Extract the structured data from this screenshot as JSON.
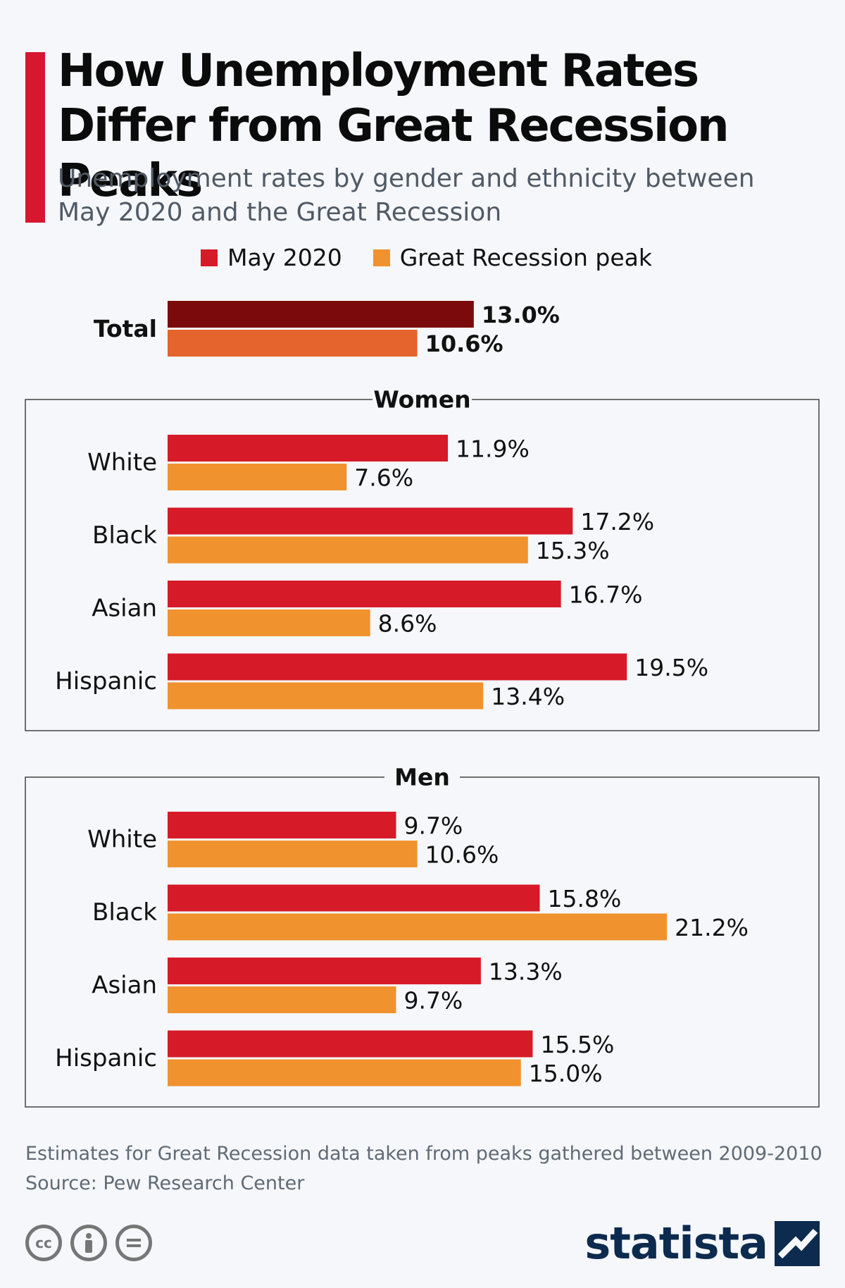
{
  "title": "How Unemployment Rates Differ from Great Recession Peaks",
  "subtitle": "Unemployment rates by gender and ethnicity between May 2020 and the Great Recession",
  "legend": {
    "may2020": "May 2020",
    "recession": "Great Recession peak"
  },
  "colors": {
    "accent": "#d7172f",
    "may2020": "#d71a28",
    "recession": "#f0922e",
    "total_may2020": "#7b0a0c",
    "total_recession": "#e5632c"
  },
  "note": "Estimates for Great Recession data taken from peaks gathered between 2009-2010",
  "source": "Source: Pew Research Center",
  "license_icons": [
    "cc-icon",
    "attribution-icon",
    "no-derivatives-icon"
  ],
  "brand": "statista",
  "chart_data": {
    "type": "bar",
    "orientation": "horizontal",
    "xlim": [
      0,
      25
    ],
    "series_names": [
      "May 2020",
      "Great Recession peak"
    ],
    "groups": [
      {
        "name": "",
        "categories": [
          "Total"
        ],
        "series": [
          {
            "name": "May 2020",
            "values": [
              13.0
            ],
            "labels": [
              "13.0%"
            ]
          },
          {
            "name": "Great Recession peak",
            "values": [
              10.6
            ],
            "labels": [
              "10.6%"
            ]
          }
        ]
      },
      {
        "name": "Women",
        "categories": [
          "White",
          "Black",
          "Asian",
          "Hispanic"
        ],
        "series": [
          {
            "name": "May 2020",
            "values": [
              11.9,
              17.2,
              16.7,
              19.5
            ],
            "labels": [
              "11.9%",
              "17.2%",
              "16.7%",
              "19.5%"
            ]
          },
          {
            "name": "Great Recession peak",
            "values": [
              7.6,
              15.3,
              8.6,
              13.4
            ],
            "labels": [
              "7.6%",
              "15.3%",
              "8.6%",
              "13.4%"
            ]
          }
        ]
      },
      {
        "name": "Men",
        "categories": [
          "White",
          "Black",
          "Asian",
          "Hispanic"
        ],
        "series": [
          {
            "name": "May 2020",
            "values": [
              9.7,
              15.8,
              13.3,
              15.5
            ],
            "labels": [
              "9.7%",
              "15.8%",
              "13.3%",
              "15.5%"
            ]
          },
          {
            "name": "Great Recession peak",
            "values": [
              10.6,
              21.2,
              9.7,
              15.0
            ],
            "labels": [
              "10.6%",
              "21.2%",
              "9.7%",
              "15.0%"
            ]
          }
        ]
      }
    ]
  }
}
